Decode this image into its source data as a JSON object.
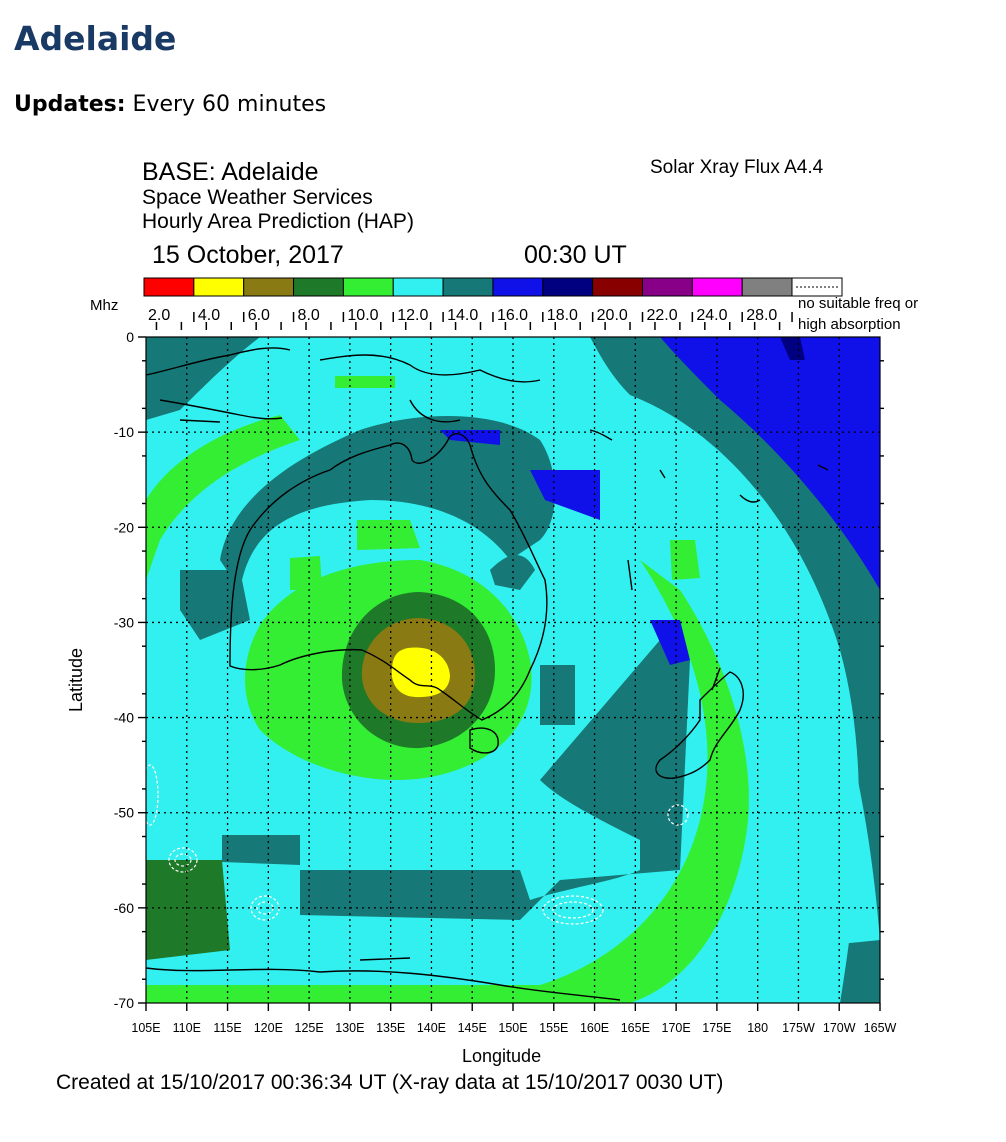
{
  "page": {
    "title": "Adelaide",
    "updates_label": "Updates:",
    "updates_value": "Every 60 minutes"
  },
  "map": {
    "base": "BASE: Adelaide",
    "service": "Space Weather Services",
    "product": "Hourly Area Prediction (HAP)",
    "date": "15 October, 2017",
    "time": "00:30 UT",
    "flux": "Solar Xray Flux A4.4",
    "legend_unit": "Mhz",
    "legend": [
      {
        "label": "2.0",
        "color": "#ff0000"
      },
      {
        "label": "4.0",
        "color": "#ffff00"
      },
      {
        "label": "6.0",
        "color": "#8a7a14"
      },
      {
        "label": "8.0",
        "color": "#1e7a28"
      },
      {
        "label": "10.0",
        "color": "#33ee33"
      },
      {
        "label": "12.0",
        "color": "#33f0f0"
      },
      {
        "label": "14.0",
        "color": "#177878"
      },
      {
        "label": "16.0",
        "color": "#1010e8"
      },
      {
        "label": "18.0",
        "color": "#000080"
      },
      {
        "label": "20.0",
        "color": "#880000"
      },
      {
        "label": "22.0",
        "color": "#880088"
      },
      {
        "label": "24.0",
        "color": "#ff00ff"
      },
      {
        "label": "28.0",
        "color": "#808080"
      }
    ],
    "no_freq_line1": "no suitable freq or",
    "no_freq_line2": "high absorption",
    "y_axis_label": "Latitude",
    "x_axis_label": "Longitude",
    "y_ticks": [
      "0",
      "-10",
      "-20",
      "-30",
      "-40",
      "-50",
      "-60",
      "-70"
    ],
    "x_ticks": [
      "105E",
      "110E",
      "115E",
      "120E",
      "125E",
      "130E",
      "135E",
      "140E",
      "145E",
      "150E",
      "155E",
      "160E",
      "165E",
      "170E",
      "175E",
      "180",
      "175W",
      "170W",
      "165W"
    ],
    "footer": "Created at 15/10/2017 00:36:34 UT (X-ray data at 15/10/2017 0030 UT)"
  }
}
